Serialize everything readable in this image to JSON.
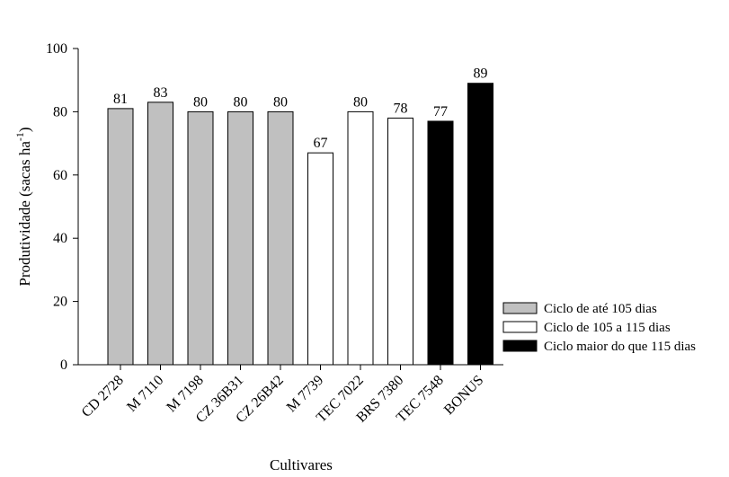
{
  "chart_data": {
    "type": "bar",
    "xlabel": "Cultivares",
    "ylabel_main": "Produtividade (sacas ha",
    "ylabel_sup": "-1",
    "ylabel_close": ")",
    "ylim": [
      0,
      100
    ],
    "yticks": [
      0,
      20,
      40,
      60,
      80,
      100
    ],
    "grid": false,
    "legend_position": "right",
    "categories": [
      "CD 2728",
      "M 7110",
      "M 7198",
      "CZ 36B31",
      "CZ 26B42",
      "M 7739",
      "TEC 7022",
      "BRS 7380",
      "TEC 7548",
      "BONUS"
    ],
    "values": [
      81,
      83,
      80,
      80,
      80,
      67,
      80,
      78,
      77,
      89
    ],
    "groups": [
      0,
      0,
      0,
      0,
      0,
      1,
      1,
      1,
      2,
      2
    ],
    "legend": [
      {
        "label": "Ciclo de até 105 dias",
        "color": "#c0c0c0"
      },
      {
        "label": "Ciclo de 105 a 115 dias",
        "color": "#ffffff"
      },
      {
        "label": "Ciclo maior do que 115 dias",
        "color": "#000000"
      }
    ]
  }
}
